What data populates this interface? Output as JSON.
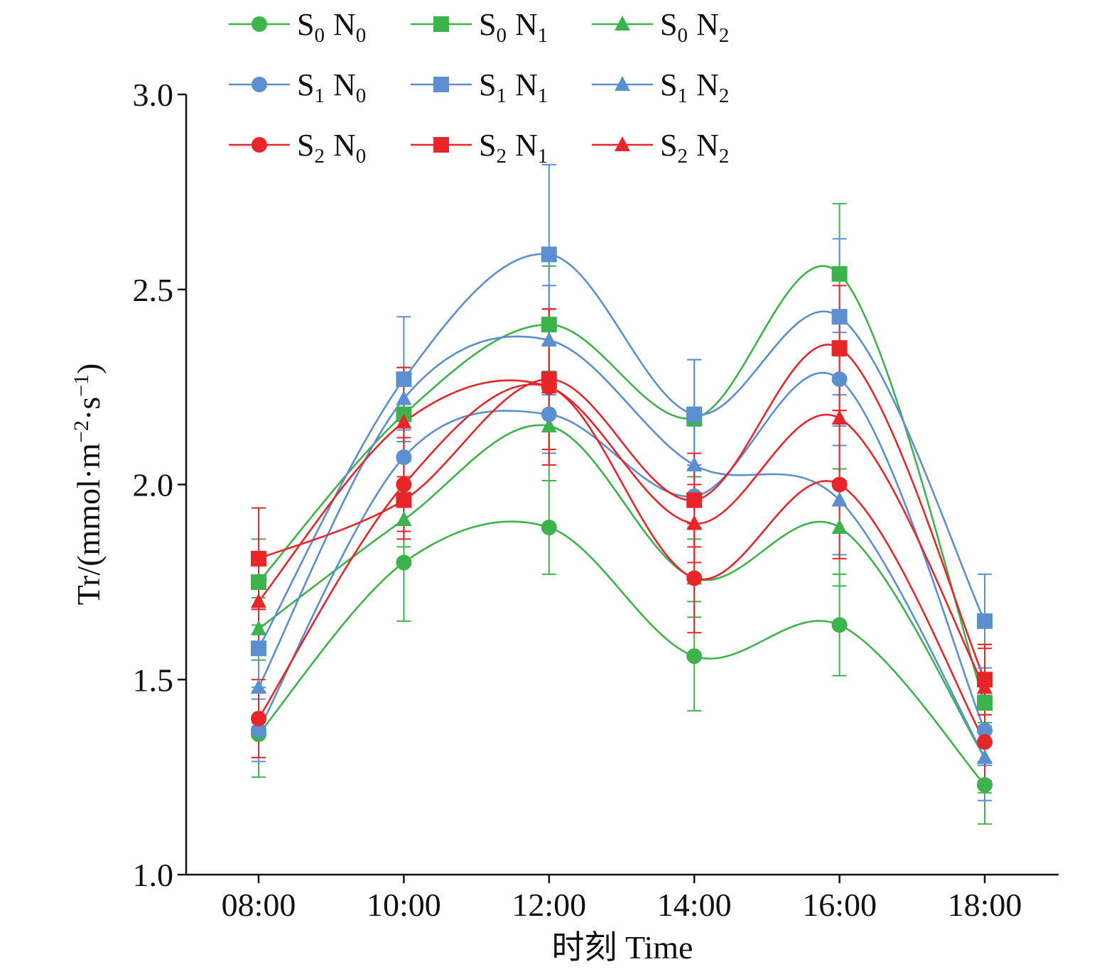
{
  "chart_data": {
    "type": "line",
    "title": "",
    "xlabel": "时刻 Time",
    "ylabel": {
      "parts": [
        {
          "text": "Tr/(mmol·m"
        },
        {
          "text": "−2",
          "sup": true
        },
        {
          "text": "·s"
        },
        {
          "text": "−1",
          "sup": true
        },
        {
          "text": ")"
        }
      ]
    },
    "x": [
      "08:00",
      "10:00",
      "12:00",
      "14:00",
      "16:00",
      "18:00"
    ],
    "ylim": [
      1.0,
      3.0
    ],
    "yticks": [
      "1.0",
      "1.5",
      "2.0",
      "2.5",
      "3.0"
    ],
    "grid": false,
    "legend_position": "top",
    "colors": {
      "S0": "#3cb44b",
      "S1": "#5b8fd0",
      "S2": "#e8262a"
    },
    "series": [
      {
        "name": "S0 N0",
        "label": {
          "a": "S",
          "a_sub": "0",
          "b": "N",
          "b_sub": "0"
        },
        "color": "#3cb44b",
        "marker": "circle",
        "values": [
          1.36,
          1.8,
          1.89,
          1.56,
          1.64,
          1.23
        ],
        "errors": [
          0.11,
          0.15,
          0.12,
          0.14,
          0.13,
          0.1
        ]
      },
      {
        "name": "S0 N1",
        "label": {
          "a": "S",
          "a_sub": "0",
          "b": "N",
          "b_sub": "1"
        },
        "color": "#3cb44b",
        "marker": "square",
        "values": [
          1.75,
          2.18,
          2.41,
          2.17,
          2.54,
          1.44
        ],
        "errors": [
          0.11,
          0.12,
          0.15,
          0.15,
          0.18,
          0.15
        ]
      },
      {
        "name": "S0 N2",
        "label": {
          "a": "S",
          "a_sub": "0",
          "b": "N",
          "b_sub": "2"
        },
        "color": "#3cb44b",
        "marker": "triangle",
        "values": [
          1.63,
          1.91,
          2.15,
          1.76,
          1.89,
          1.3
        ],
        "errors": [
          0.08,
          0.07,
          0.14,
          0.1,
          0.15,
          0.09
        ]
      },
      {
        "name": "S1 N0",
        "label": {
          "a": "S",
          "a_sub": "1",
          "b": "N",
          "b_sub": "0"
        },
        "color": "#5b8fd0",
        "marker": "circle",
        "values": [
          1.37,
          2.07,
          2.18,
          1.97,
          2.27,
          1.37
        ],
        "errors": [
          0.08,
          0.1,
          0.1,
          0.08,
          0.12,
          0.09
        ]
      },
      {
        "name": "S1 N1",
        "label": {
          "a": "S",
          "a_sub": "1",
          "b": "N",
          "b_sub": "1"
        },
        "color": "#5b8fd0",
        "marker": "square",
        "values": [
          1.58,
          2.27,
          2.59,
          2.18,
          2.43,
          1.65
        ],
        "errors": [
          0.1,
          0.16,
          0.23,
          0.14,
          0.2,
          0.12
        ]
      },
      {
        "name": "S1 N2",
        "label": {
          "a": "S",
          "a_sub": "1",
          "b": "N",
          "b_sub": "2"
        },
        "color": "#5b8fd0",
        "marker": "triangle",
        "values": [
          1.48,
          2.22,
          2.37,
          2.05,
          1.96,
          1.3
        ],
        "errors": [
          0.09,
          0.08,
          0.14,
          0.1,
          0.14,
          0.11
        ]
      },
      {
        "name": "S2 N0",
        "label": {
          "a": "S",
          "a_sub": "2",
          "b": "N",
          "b_sub": "0"
        },
        "color": "#e8262a",
        "marker": "circle",
        "values": [
          1.4,
          2.0,
          2.25,
          1.76,
          2.0,
          1.34
        ],
        "errors": [
          0.1,
          0.12,
          0.2,
          0.14,
          0.19,
          0.1
        ]
      },
      {
        "name": "S2 N1",
        "label": {
          "a": "S",
          "a_sub": "2",
          "b": "N",
          "b_sub": "1"
        },
        "color": "#e8262a",
        "marker": "square",
        "values": [
          1.81,
          1.96,
          2.27,
          1.96,
          2.35,
          1.5
        ],
        "errors": [
          0.13,
          0.1,
          0.18,
          0.12,
          0.16,
          0.09
        ]
      },
      {
        "name": "S2 N2",
        "label": {
          "a": "S",
          "a_sub": "2",
          "b": "N",
          "b_sub": "2"
        },
        "color": "#e8262a",
        "marker": "triangle",
        "values": [
          1.7,
          2.16,
          2.25,
          1.9,
          2.17,
          1.48
        ],
        "errors": [
          0.12,
          0.14,
          0.2,
          0.1,
          0.16,
          0.1
        ]
      }
    ]
  }
}
